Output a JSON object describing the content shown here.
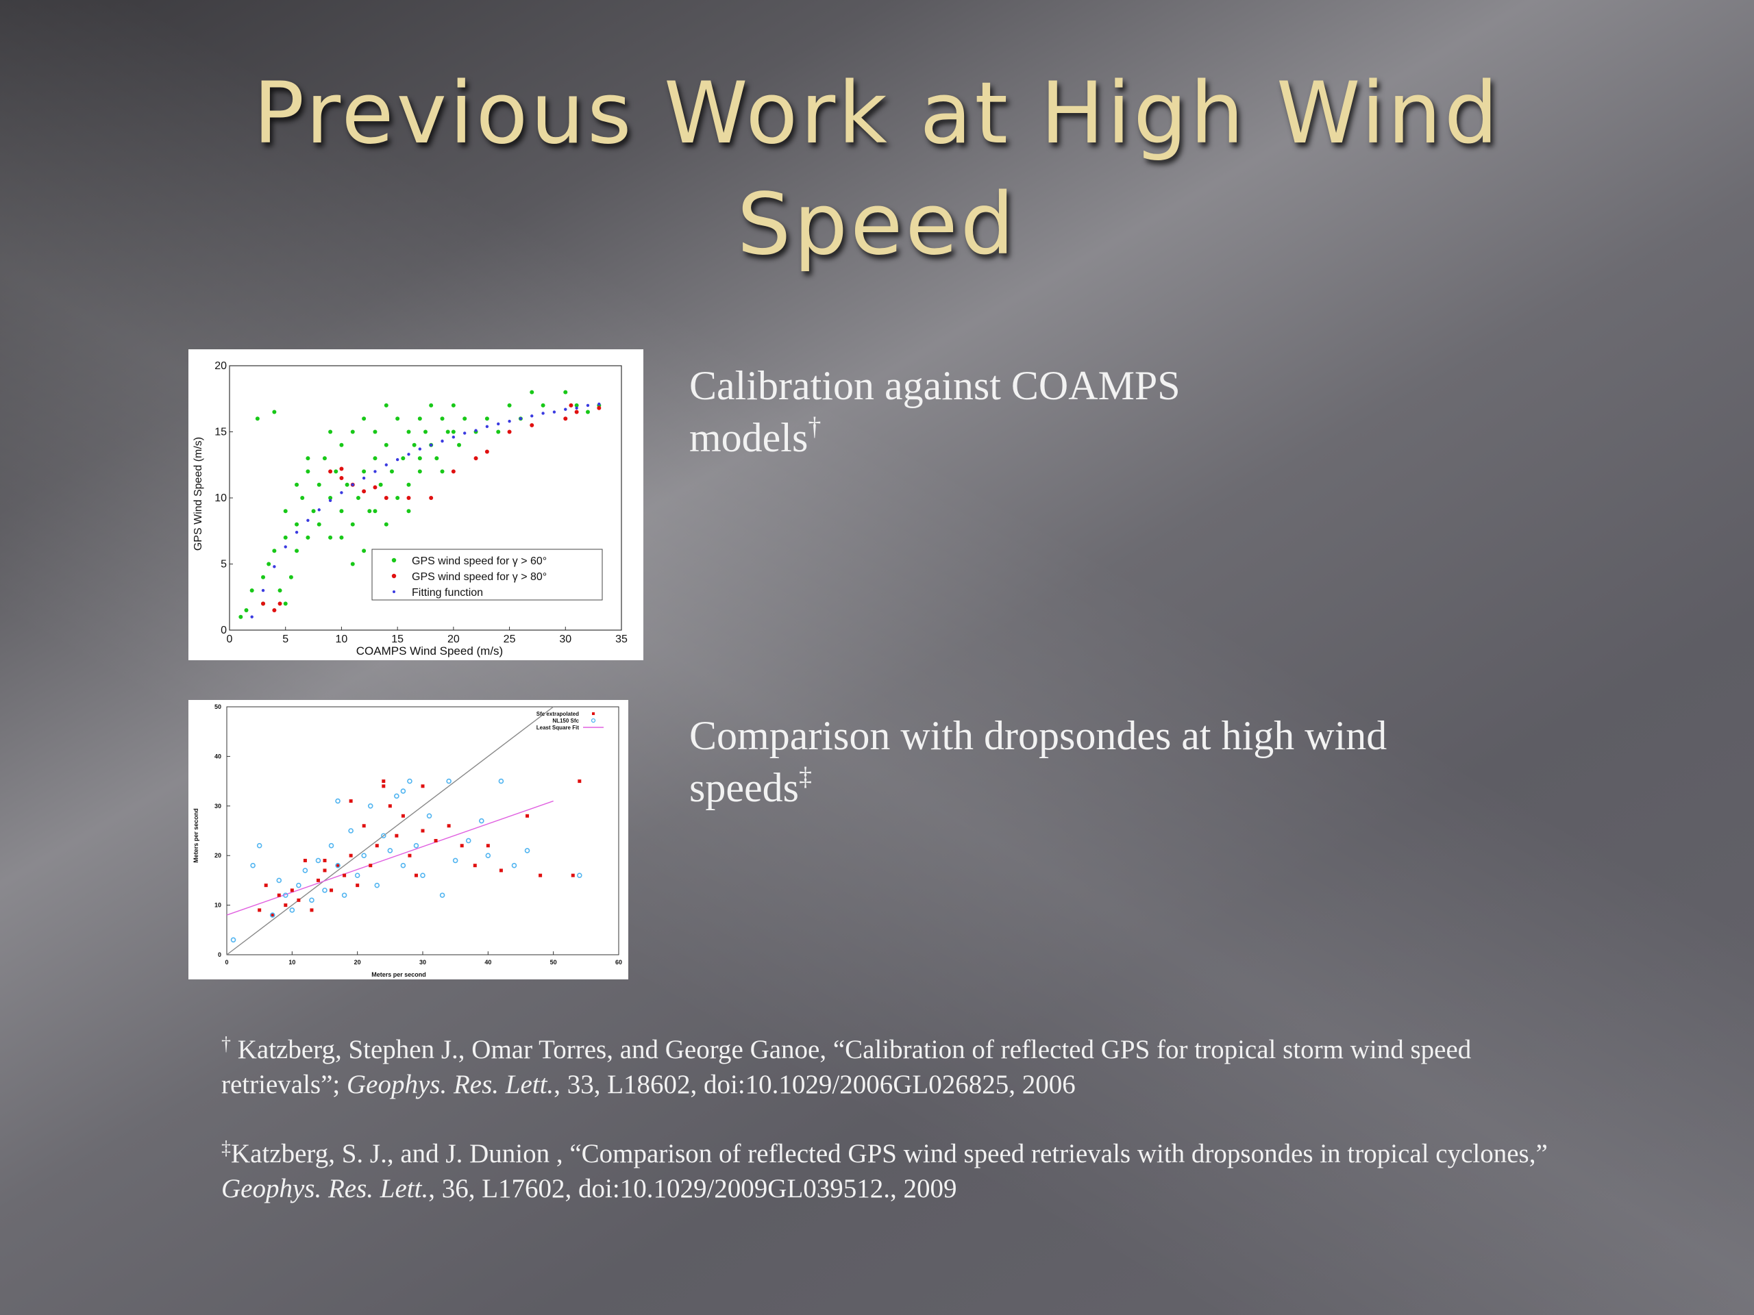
{
  "slide": {
    "title_line1": "Previous Work at High Wind",
    "title_line2": "Speed"
  },
  "captions": {
    "calibration_text": "Calibration against COAMPS models",
    "calibration_mark": "†",
    "comparison_text": "Comparison with dropsondes at high wind speeds",
    "comparison_mark": "‡"
  },
  "references": [
    {
      "mark": "†",
      "before": " Katzberg, Stephen J., Omar Torres, and George Ganoe, “Calibration of reflected GPS for tropical storm wind speed retrievals”; ",
      "journal": "Geophys. Res. Lett.",
      "after": ",  33, L18602, doi:10.1029/2006GL026825, 2006"
    },
    {
      "mark": "‡",
      "before": "Katzberg, S. J., and J. Dunion , “Comparison of reflected GPS wind speed retrievals with dropsondes in tropical cyclones,” ",
      "journal": "Geophys. Res. Lett.",
      "after": ", 36, L17602, doi:10.1029/2009GL039512., 2009"
    }
  ],
  "chart_data": [
    {
      "type": "scatter",
      "xlabel": "COAMPS Wind Speed (m/s)",
      "ylabel": "GPS Wind Speed (m/s)",
      "xlim": [
        0,
        35
      ],
      "ylim": [
        0,
        20
      ],
      "xticks": [
        0,
        5,
        10,
        15,
        20,
        25,
        30,
        35
      ],
      "yticks": [
        0,
        5,
        10,
        15,
        20
      ],
      "grid": false,
      "legend_position": "bottom-right",
      "series": [
        {
          "name": "GPS wind speed for γ > 60°",
          "color": "#18c818",
          "points": [
            [
              1,
              1
            ],
            [
              1.5,
              1.5
            ],
            [
              2,
              3
            ],
            [
              2.5,
              16
            ],
            [
              3,
              2
            ],
            [
              3.5,
              5
            ],
            [
              4,
              6
            ],
            [
              4,
              16.5
            ],
            [
              4.5,
              3
            ],
            [
              5,
              7
            ],
            [
              5,
              9
            ],
            [
              5.5,
              4
            ],
            [
              6,
              8
            ],
            [
              6,
              6
            ],
            [
              6.5,
              10
            ],
            [
              7,
              7
            ],
            [
              7,
              12
            ],
            [
              7.5,
              9
            ],
            [
              8,
              8
            ],
            [
              8,
              11
            ],
            [
              8.5,
              13
            ],
            [
              9,
              10
            ],
            [
              9,
              7
            ],
            [
              9.5,
              12
            ],
            [
              10,
              9
            ],
            [
              10,
              14
            ],
            [
              10.5,
              11
            ],
            [
              11,
              8
            ],
            [
              11,
              15
            ],
            [
              11.5,
              10
            ],
            [
              12,
              12
            ],
            [
              12,
              16
            ],
            [
              12.5,
              9
            ],
            [
              13,
              13
            ],
            [
              13,
              15
            ],
            [
              13.5,
              11
            ],
            [
              14,
              8
            ],
            [
              14,
              14
            ],
            [
              14.5,
              12
            ],
            [
              15,
              16
            ],
            [
              15,
              10
            ],
            [
              15.5,
              13
            ],
            [
              16,
              15
            ],
            [
              16,
              11
            ],
            [
              16.5,
              14
            ],
            [
              17,
              16
            ],
            [
              17,
              12
            ],
            [
              17.5,
              15
            ],
            [
              18,
              14
            ],
            [
              18,
              17
            ],
            [
              18.5,
              13
            ],
            [
              19,
              16
            ],
            [
              19.5,
              15
            ],
            [
              20,
              17
            ],
            [
              20.5,
              14
            ],
            [
              21,
              16
            ],
            [
              22,
              15
            ],
            [
              23,
              16
            ],
            [
              24,
              15
            ],
            [
              25,
              17
            ],
            [
              26,
              16
            ],
            [
              27,
              18
            ],
            [
              28,
              17
            ],
            [
              30,
              18
            ],
            [
              31,
              17
            ],
            [
              32,
              16.5
            ],
            [
              33,
              17
            ],
            [
              7,
              13
            ],
            [
              9,
              15
            ],
            [
              12,
              6
            ],
            [
              14,
              17
            ],
            [
              6,
              11
            ],
            [
              11,
              5
            ],
            [
              16,
              9
            ],
            [
              13,
              9
            ],
            [
              10,
              7
            ],
            [
              17,
              13
            ],
            [
              19,
              12
            ],
            [
              20,
              15
            ],
            [
              3,
              4
            ],
            [
              5,
              2
            ]
          ]
        },
        {
          "name": "GPS wind speed for γ > 80°",
          "color": "#e01010",
          "points": [
            [
              3,
              2
            ],
            [
              4,
              1.5
            ],
            [
              4.5,
              2
            ],
            [
              9,
              12
            ],
            [
              10,
              11.5
            ],
            [
              11,
              11
            ],
            [
              12,
              10.5
            ],
            [
              14,
              10
            ],
            [
              16,
              10
            ],
            [
              18,
              10
            ],
            [
              20,
              12
            ],
            [
              22,
              13
            ],
            [
              23,
              13.5
            ],
            [
              25,
              15
            ],
            [
              27,
              15.5
            ],
            [
              30,
              16
            ],
            [
              30.5,
              17
            ],
            [
              31,
              16.5
            ],
            [
              33,
              16.8
            ],
            [
              10,
              12.2
            ],
            [
              13,
              10.8
            ]
          ]
        },
        {
          "name": "Fitting function",
          "color": "#3a3ae0",
          "points": [
            [
              2,
              1
            ],
            [
              3,
              3
            ],
            [
              4,
              4.8
            ],
            [
              5,
              6.3
            ],
            [
              6,
              7.4
            ],
            [
              7,
              8.3
            ],
            [
              8,
              9.1
            ],
            [
              9,
              9.8
            ],
            [
              10,
              10.4
            ],
            [
              11,
              11
            ],
            [
              12,
              11.5
            ],
            [
              13,
              12
            ],
            [
              14,
              12.5
            ],
            [
              15,
              12.9
            ],
            [
              16,
              13.3
            ],
            [
              17,
              13.7
            ],
            [
              18,
              14
            ],
            [
              19,
              14.3
            ],
            [
              20,
              14.6
            ],
            [
              21,
              14.9
            ],
            [
              22,
              15.1
            ],
            [
              23,
              15.4
            ],
            [
              24,
              15.6
            ],
            [
              25,
              15.8
            ],
            [
              26,
              16
            ],
            [
              27,
              16.2
            ],
            [
              28,
              16.4
            ],
            [
              29,
              16.5
            ],
            [
              30,
              16.7
            ],
            [
              31,
              16.8
            ],
            [
              32,
              17
            ],
            [
              33,
              17.1
            ]
          ]
        }
      ]
    },
    {
      "type": "scatter",
      "xlabel": "Meters per second",
      "ylabel": "Meters per second",
      "xlim": [
        0,
        60
      ],
      "ylim": [
        0,
        50
      ],
      "xticks": [
        0,
        10,
        20,
        30,
        40,
        50,
        60
      ],
      "yticks": [
        0,
        10,
        20,
        30,
        40,
        50
      ],
      "grid": false,
      "legend_position": "top-right",
      "reference_line": [
        [
          0,
          0
        ],
        [
          50,
          50
        ]
      ],
      "series": [
        {
          "name": "Sfc extrapolated",
          "color": "#e01010",
          "points": [
            [
              5,
              9
            ],
            [
              6,
              14
            ],
            [
              7,
              8
            ],
            [
              8,
              12
            ],
            [
              9,
              10
            ],
            [
              10,
              13
            ],
            [
              11,
              11
            ],
            [
              12,
              19
            ],
            [
              13,
              9
            ],
            [
              14,
              15
            ],
            [
              15,
              17
            ],
            [
              16,
              13
            ],
            [
              17,
              18
            ],
            [
              18,
              16
            ],
            [
              19,
              20
            ],
            [
              20,
              14
            ],
            [
              21,
              26
            ],
            [
              22,
              18
            ],
            [
              23,
              22
            ],
            [
              24,
              35
            ],
            [
              25,
              30
            ],
            [
              26,
              24
            ],
            [
              27,
              28
            ],
            [
              28,
              20
            ],
            [
              29,
              16
            ],
            [
              30,
              25
            ],
            [
              32,
              23
            ],
            [
              34,
              26
            ],
            [
              36,
              22
            ],
            [
              38,
              18
            ],
            [
              40,
              22
            ],
            [
              42,
              17
            ],
            [
              46,
              28
            ],
            [
              48,
              16
            ],
            [
              54,
              35
            ],
            [
              53,
              16
            ],
            [
              19,
              31
            ],
            [
              24,
              34
            ],
            [
              30,
              34
            ],
            [
              15,
              19
            ]
          ]
        },
        {
          "name": "NL150 Sfc",
          "color": "#50b4f0",
          "points": [
            [
              1,
              3
            ],
            [
              4,
              18
            ],
            [
              5,
              22
            ],
            [
              7,
              8
            ],
            [
              8,
              15
            ],
            [
              9,
              12
            ],
            [
              10,
              9
            ],
            [
              11,
              14
            ],
            [
              12,
              17
            ],
            [
              13,
              11
            ],
            [
              14,
              19
            ],
            [
              15,
              13
            ],
            [
              16,
              22
            ],
            [
              17,
              18
            ],
            [
              18,
              12
            ],
            [
              19,
              25
            ],
            [
              20,
              16
            ],
            [
              21,
              20
            ],
            [
              22,
              30
            ],
            [
              23,
              14
            ],
            [
              24,
              24
            ],
            [
              25,
              21
            ],
            [
              26,
              32
            ],
            [
              27,
              18
            ],
            [
              28,
              35
            ],
            [
              29,
              22
            ],
            [
              30,
              16
            ],
            [
              31,
              28
            ],
            [
              33,
              12
            ],
            [
              34,
              35
            ],
            [
              35,
              19
            ],
            [
              37,
              23
            ],
            [
              39,
              27
            ],
            [
              40,
              20
            ],
            [
              42,
              35
            ],
            [
              44,
              18
            ],
            [
              46,
              21
            ],
            [
              54,
              16
            ],
            [
              27,
              33
            ],
            [
              17,
              31
            ]
          ]
        }
      ],
      "fit_series": {
        "name": "Least Square Fit",
        "color": "#e060e0",
        "points": [
          [
            0,
            8
          ],
          [
            50,
            31
          ]
        ]
      }
    }
  ]
}
